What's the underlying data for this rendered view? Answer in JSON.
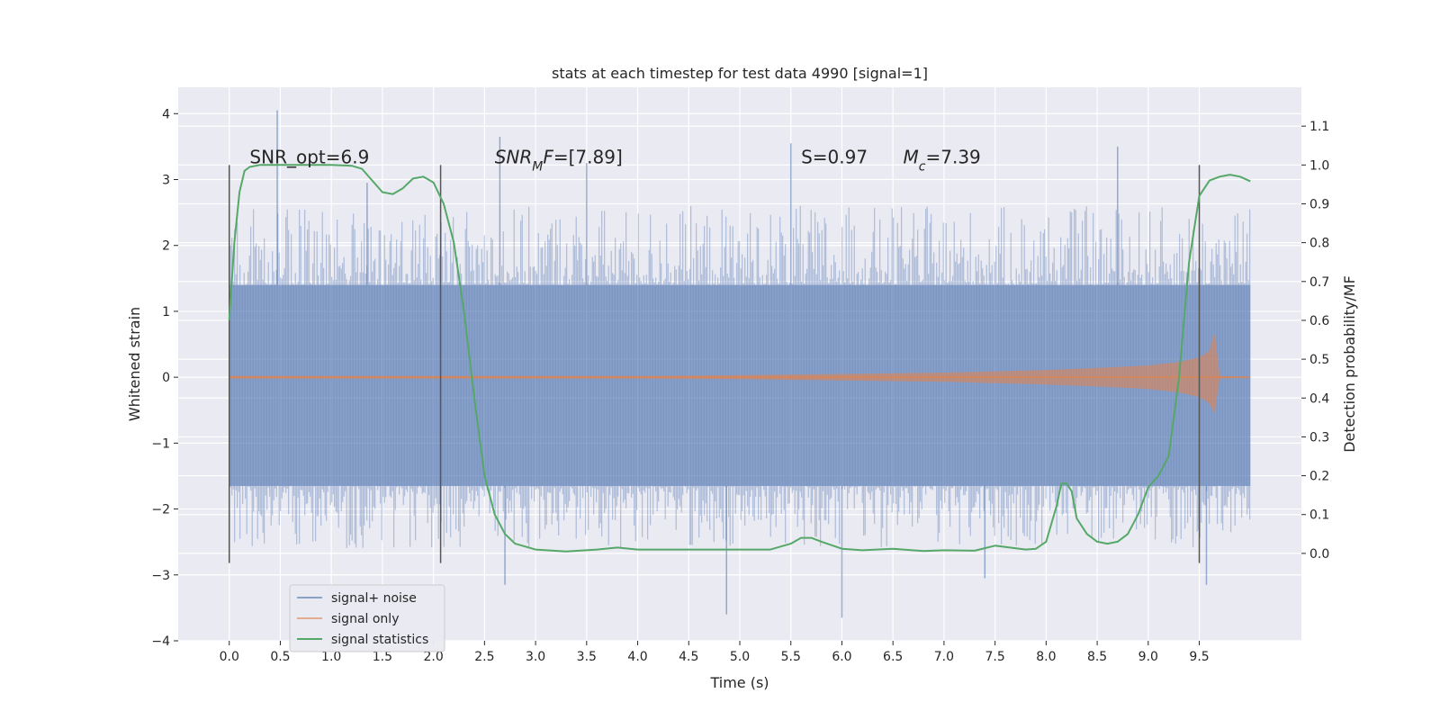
{
  "chart_data": {
    "type": "line",
    "title": "stats at each timestep for test data 4990 [signal=1]",
    "xlabel": "Time (s)",
    "ylabel": "Whitened strain",
    "y2label": "Detection probability/MF",
    "xlim": [
      -0.5,
      10.5
    ],
    "ylim": [
      -4,
      4.4
    ],
    "y2lim": [
      -0.225,
      1.2
    ],
    "x_ticks": [
      0.0,
      0.5,
      1.0,
      1.5,
      2.0,
      2.5,
      3.0,
      3.5,
      4.0,
      4.5,
      5.0,
      5.5,
      6.0,
      6.5,
      7.0,
      7.5,
      8.0,
      8.5,
      9.0,
      9.5
    ],
    "x_tick_labels": [
      "0.0",
      "0.5",
      "1.0",
      "1.5",
      "2.0",
      "2.5",
      "3.0",
      "3.5",
      "4.0",
      "4.5",
      "5.0",
      "5.5",
      "6.0",
      "6.5",
      "7.0",
      "7.5",
      "8.0",
      "8.5",
      "9.0",
      "9.5"
    ],
    "y_ticks": [
      -4,
      -3,
      -2,
      -1,
      0,
      1,
      2,
      3,
      4
    ],
    "y_tick_labels": [
      "−4",
      "−3",
      "−2",
      "−1",
      "0",
      "1",
      "2",
      "3",
      "4"
    ],
    "y2_ticks": [
      0.0,
      0.1,
      0.2,
      0.3,
      0.4,
      0.5,
      0.6,
      0.7,
      0.8,
      0.9,
      1.0,
      1.1
    ],
    "y2_tick_labels": [
      "0.0",
      "0.1",
      "0.2",
      "0.3",
      "0.4",
      "0.5",
      "0.6",
      "0.7",
      "0.8",
      "0.9",
      "1.0",
      "1.1"
    ],
    "grid": true,
    "legend_position": "bottom-left",
    "colors": {
      "background": "#eaeaf2",
      "grid": "#ffffff",
      "noise": "#4c72b0",
      "signal": "#dd8452",
      "stats": "#55a868",
      "vlines": "#555555"
    },
    "series": [
      {
        "name": "signal+ noise",
        "x_range": [
          0.0,
          10.0
        ],
        "band_min": -1.65,
        "band_max": 1.4,
        "typical_spikes": [
          -2.6,
          2.6
        ],
        "notable_peaks": [
          [
            0.47,
            4.05
          ],
          [
            1.35,
            2.95
          ],
          [
            2.65,
            3.65
          ],
          [
            3.5,
            3.25
          ],
          [
            5.5,
            3.55
          ],
          [
            8.7,
            3.5
          ],
          [
            9.57,
            -3.15
          ],
          [
            4.87,
            -3.6
          ],
          [
            6.0,
            -3.65
          ],
          [
            2.7,
            -3.15
          ],
          [
            7.4,
            -3.05
          ]
        ]
      },
      {
        "name": "signal only",
        "x": [
          0.0,
          4.0,
          5.0,
          6.0,
          7.0,
          7.5,
          8.0,
          8.5,
          9.0,
          9.3,
          9.5,
          9.6,
          9.65,
          9.7,
          10.0
        ],
        "amplitude": [
          0.02,
          0.02,
          0.03,
          0.05,
          0.07,
          0.09,
          0.11,
          0.14,
          0.18,
          0.23,
          0.3,
          0.4,
          0.7,
          0.02,
          0.0
        ]
      },
      {
        "name": "signal statistics",
        "x": [
          0.0,
          0.05,
          0.1,
          0.15,
          0.2,
          0.3,
          0.5,
          0.8,
          1.0,
          1.2,
          1.3,
          1.4,
          1.5,
          1.6,
          1.7,
          1.8,
          1.9,
          2.0,
          2.1,
          2.2,
          2.3,
          2.4,
          2.5,
          2.6,
          2.7,
          2.8,
          3.0,
          3.3,
          3.6,
          3.8,
          4.0,
          4.5,
          5.0,
          5.3,
          5.5,
          5.6,
          5.7,
          5.8,
          6.0,
          6.2,
          6.5,
          6.8,
          7.0,
          7.3,
          7.5,
          7.8,
          7.9,
          8.0,
          8.1,
          8.15,
          8.2,
          8.25,
          8.3,
          8.4,
          8.5,
          8.6,
          8.7,
          8.8,
          8.9,
          9.0,
          9.1,
          9.2,
          9.3,
          9.4,
          9.5,
          9.6,
          9.7,
          9.8,
          9.9,
          10.0
        ],
        "y": [
          0.6,
          0.8,
          0.93,
          0.985,
          0.995,
          1.0,
          1.0,
          1.0,
          1.0,
          0.998,
          0.99,
          0.96,
          0.93,
          0.925,
          0.94,
          0.965,
          0.97,
          0.955,
          0.9,
          0.8,
          0.62,
          0.4,
          0.2,
          0.1,
          0.05,
          0.025,
          0.01,
          0.005,
          0.01,
          0.015,
          0.01,
          0.01,
          0.01,
          0.01,
          0.025,
          0.04,
          0.04,
          0.03,
          0.012,
          0.008,
          0.012,
          0.006,
          0.008,
          0.007,
          0.02,
          0.01,
          0.012,
          0.03,
          0.12,
          0.18,
          0.18,
          0.16,
          0.09,
          0.05,
          0.03,
          0.025,
          0.03,
          0.05,
          0.1,
          0.17,
          0.2,
          0.25,
          0.45,
          0.75,
          0.92,
          0.96,
          0.97,
          0.975,
          0.97,
          0.958
        ]
      }
    ],
    "vlines": [
      0.0,
      2.07,
      9.5
    ],
    "vline_yrange": [
      -2.82,
      3.22
    ],
    "annotations": [
      {
        "x": 0.2,
        "y": 3.22,
        "base": "SNR_opt=6.9",
        "sub": "",
        "tail": ""
      },
      {
        "x": 2.6,
        "y": 3.22,
        "base": "SNR",
        "sub": "M",
        "tail": "F=[7.89]"
      },
      {
        "x": 5.6,
        "y": 3.22,
        "base": "S",
        "sub": "",
        "tail": "=0.97"
      },
      {
        "x": 6.6,
        "y": 3.22,
        "base": "M",
        "sub": "c",
        "tail": "=7.39"
      }
    ]
  }
}
